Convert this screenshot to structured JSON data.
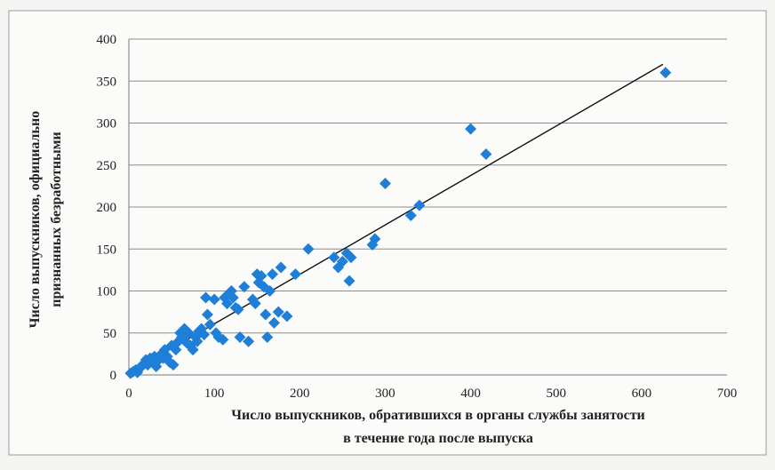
{
  "chart_data": {
    "type": "scatter",
    "title": "",
    "xlabel_lines": [
      "Число выпускников,  обратившихся  в органы  службы занятости",
      "в течение года после выпуска"
    ],
    "ylabel_lines": [
      "Число выпускников,  официально",
      "признанных  безработными"
    ],
    "xlim": [
      0,
      700
    ],
    "ylim": [
      0,
      400
    ],
    "x_ticks": [
      "0",
      "100",
      "200",
      "300",
      "400",
      "500",
      "600",
      "700"
    ],
    "y_ticks": [
      "0",
      "50",
      "100",
      "150",
      "200",
      "250",
      "300",
      "350",
      "400"
    ],
    "grid": "horizontal",
    "marker_color": "#1f7fd8",
    "trendline_color": "#111111",
    "trendline": {
      "x": [
        0,
        625
      ],
      "y": [
        2,
        370
      ]
    },
    "points": [
      {
        "x": 2,
        "y": 2
      },
      {
        "x": 5,
        "y": 4
      },
      {
        "x": 8,
        "y": 6
      },
      {
        "x": 10,
        "y": 3
      },
      {
        "x": 12,
        "y": 8
      },
      {
        "x": 15,
        "y": 10
      },
      {
        "x": 18,
        "y": 14
      },
      {
        "x": 20,
        "y": 18
      },
      {
        "x": 22,
        "y": 12
      },
      {
        "x": 25,
        "y": 20
      },
      {
        "x": 28,
        "y": 15
      },
      {
        "x": 30,
        "y": 22
      },
      {
        "x": 32,
        "y": 10
      },
      {
        "x": 35,
        "y": 18
      },
      {
        "x": 38,
        "y": 25
      },
      {
        "x": 40,
        "y": 20
      },
      {
        "x": 42,
        "y": 30
      },
      {
        "x": 45,
        "y": 22
      },
      {
        "x": 48,
        "y": 15
      },
      {
        "x": 50,
        "y": 35
      },
      {
        "x": 52,
        "y": 12
      },
      {
        "x": 55,
        "y": 30
      },
      {
        "x": 58,
        "y": 40
      },
      {
        "x": 60,
        "y": 50
      },
      {
        "x": 62,
        "y": 45
      },
      {
        "x": 65,
        "y": 55
      },
      {
        "x": 68,
        "y": 38
      },
      {
        "x": 70,
        "y": 50
      },
      {
        "x": 72,
        "y": 35
      },
      {
        "x": 75,
        "y": 30
      },
      {
        "x": 78,
        "y": 45
      },
      {
        "x": 80,
        "y": 40
      },
      {
        "x": 82,
        "y": 52
      },
      {
        "x": 85,
        "y": 55
      },
      {
        "x": 88,
        "y": 48
      },
      {
        "x": 90,
        "y": 92
      },
      {
        "x": 92,
        "y": 72
      },
      {
        "x": 95,
        "y": 60
      },
      {
        "x": 100,
        "y": 90
      },
      {
        "x": 102,
        "y": 50
      },
      {
        "x": 105,
        "y": 45
      },
      {
        "x": 110,
        "y": 42
      },
      {
        "x": 112,
        "y": 92
      },
      {
        "x": 115,
        "y": 85
      },
      {
        "x": 118,
        "y": 98
      },
      {
        "x": 120,
        "y": 100
      },
      {
        "x": 122,
        "y": 92
      },
      {
        "x": 125,
        "y": 80
      },
      {
        "x": 128,
        "y": 78
      },
      {
        "x": 130,
        "y": 45
      },
      {
        "x": 135,
        "y": 105
      },
      {
        "x": 140,
        "y": 40
      },
      {
        "x": 145,
        "y": 90
      },
      {
        "x": 148,
        "y": 85
      },
      {
        "x": 150,
        "y": 120
      },
      {
        "x": 152,
        "y": 110
      },
      {
        "x": 155,
        "y": 118
      },
      {
        "x": 158,
        "y": 105
      },
      {
        "x": 160,
        "y": 72
      },
      {
        "x": 162,
        "y": 45
      },
      {
        "x": 165,
        "y": 100
      },
      {
        "x": 168,
        "y": 120
      },
      {
        "x": 170,
        "y": 62
      },
      {
        "x": 175,
        "y": 75
      },
      {
        "x": 178,
        "y": 128
      },
      {
        "x": 185,
        "y": 70
      },
      {
        "x": 195,
        "y": 120
      },
      {
        "x": 210,
        "y": 150
      },
      {
        "x": 240,
        "y": 140
      },
      {
        "x": 245,
        "y": 128
      },
      {
        "x": 250,
        "y": 135
      },
      {
        "x": 255,
        "y": 145
      },
      {
        "x": 258,
        "y": 112
      },
      {
        "x": 260,
        "y": 140
      },
      {
        "x": 285,
        "y": 155
      },
      {
        "x": 288,
        "y": 162
      },
      {
        "x": 300,
        "y": 228
      },
      {
        "x": 330,
        "y": 190
      },
      {
        "x": 340,
        "y": 202
      },
      {
        "x": 400,
        "y": 293
      },
      {
        "x": 418,
        "y": 263
      },
      {
        "x": 628,
        "y": 360
      }
    ]
  }
}
